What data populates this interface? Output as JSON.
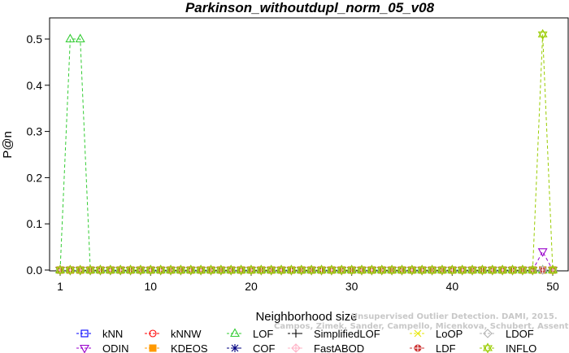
{
  "chart_data": {
    "type": "line",
    "title": "Parkinson_withoutdupl_norm_05_v08",
    "xlabel": "Neighborhood size",
    "ylabel": "P@n",
    "xlim": [
      1,
      50
    ],
    "ylim": [
      0,
      0.5
    ],
    "xticks": [
      1,
      10,
      20,
      30,
      40,
      50
    ],
    "yticks": [
      0.0,
      0.1,
      0.2,
      0.3,
      0.4,
      0.5
    ],
    "xtick_labels": [
      "1",
      "10",
      "20",
      "30",
      "40",
      "50"
    ],
    "ytick_labels": [
      "0.0",
      "0.1",
      "0.2",
      "0.3",
      "0.4",
      "0.5"
    ],
    "x": [
      1,
      2,
      3,
      4,
      5,
      6,
      7,
      8,
      9,
      10,
      11,
      12,
      13,
      14,
      15,
      16,
      17,
      18,
      19,
      20,
      21,
      22,
      23,
      24,
      25,
      26,
      27,
      28,
      29,
      30,
      31,
      32,
      33,
      34,
      35,
      36,
      37,
      38,
      39,
      40,
      41,
      42,
      43,
      44,
      45,
      46,
      47,
      48,
      49,
      50
    ],
    "grid": false,
    "legend_position": "bottom",
    "series": [
      {
        "name": "kNN",
        "color": "#0000ff",
        "marker": "square",
        "values": [
          0,
          0,
          0,
          0,
          0,
          0,
          0,
          0,
          0,
          0,
          0,
          0,
          0,
          0,
          0,
          0,
          0,
          0,
          0,
          0,
          0,
          0,
          0,
          0,
          0,
          0,
          0,
          0,
          0,
          0,
          0,
          0,
          0,
          0,
          0,
          0,
          0,
          0,
          0,
          0,
          0,
          0,
          0,
          0,
          0,
          0,
          0,
          0,
          0,
          0
        ]
      },
      {
        "name": "ODIN",
        "color": "#9900cc",
        "marker": "triangle-down",
        "values": [
          0,
          0,
          0,
          0,
          0,
          0,
          0,
          0,
          0,
          0,
          0,
          0,
          0,
          0,
          0,
          0,
          0,
          0,
          0,
          0,
          0,
          0,
          0,
          0,
          0,
          0,
          0,
          0,
          0,
          0,
          0,
          0,
          0,
          0,
          0,
          0,
          0,
          0,
          0,
          0,
          0,
          0,
          0,
          0,
          0,
          0,
          0,
          0,
          0.04,
          0
        ]
      },
      {
        "name": "kNNW",
        "color": "#ff0000",
        "marker": "circle",
        "values": [
          0,
          0,
          0,
          0,
          0,
          0,
          0,
          0,
          0,
          0,
          0,
          0,
          0,
          0,
          0,
          0,
          0,
          0,
          0,
          0,
          0,
          0,
          0,
          0,
          0,
          0,
          0,
          0,
          0,
          0,
          0,
          0,
          0,
          0,
          0,
          0,
          0,
          0,
          0,
          0,
          0,
          0,
          0,
          0,
          0,
          0,
          0,
          0,
          0,
          0
        ]
      },
      {
        "name": "KDEOS",
        "color": "#ff9900",
        "marker": "square-filled",
        "values": [
          0,
          0,
          0,
          0,
          0,
          0,
          0,
          0,
          0,
          0,
          0,
          0,
          0,
          0,
          0,
          0,
          0,
          0,
          0,
          0,
          0,
          0,
          0,
          0,
          0,
          0,
          0,
          0,
          0,
          0,
          0,
          0,
          0,
          0,
          0,
          0,
          0,
          0,
          0,
          0,
          0,
          0,
          0,
          0,
          0,
          0,
          0,
          0,
          0,
          0
        ]
      },
      {
        "name": "LOF",
        "color": "#33cc33",
        "marker": "triangle",
        "values": [
          0,
          0.5,
          0.5,
          0,
          0,
          0,
          0,
          0,
          0,
          0,
          0,
          0,
          0,
          0,
          0,
          0,
          0,
          0,
          0,
          0,
          0,
          0,
          0,
          0,
          0,
          0,
          0,
          0,
          0,
          0,
          0,
          0,
          0,
          0,
          0,
          0,
          0,
          0,
          0,
          0,
          0,
          0,
          0,
          0,
          0,
          0,
          0,
          0,
          0,
          0
        ]
      },
      {
        "name": "COF",
        "color": "#000080",
        "marker": "star",
        "values": [
          0,
          0,
          0,
          0,
          0,
          0,
          0,
          0,
          0,
          0,
          0,
          0,
          0,
          0,
          0,
          0,
          0,
          0,
          0,
          0,
          0,
          0,
          0,
          0,
          0,
          0,
          0,
          0,
          0,
          0,
          0,
          0,
          0,
          0,
          0,
          0,
          0,
          0,
          0,
          0,
          0,
          0,
          0,
          0,
          0,
          0,
          0,
          0,
          0,
          0
        ]
      },
      {
        "name": "SimplifiedLOF",
        "color": "#000000",
        "marker": "plus",
        "values": [
          0,
          0,
          0,
          0,
          0,
          0,
          0,
          0,
          0,
          0,
          0,
          0,
          0,
          0,
          0,
          0,
          0,
          0,
          0,
          0,
          0,
          0,
          0,
          0,
          0,
          0,
          0,
          0,
          0,
          0,
          0,
          0,
          0,
          0,
          0,
          0,
          0,
          0,
          0,
          0,
          0,
          0,
          0,
          0,
          0,
          0,
          0,
          0,
          0,
          0
        ]
      },
      {
        "name": "FastABOD",
        "color": "#ffb3c6",
        "marker": "diamond-plus",
        "values": [
          0,
          0,
          0,
          0,
          0,
          0,
          0,
          0,
          0,
          0,
          0,
          0,
          0,
          0,
          0,
          0,
          0,
          0,
          0,
          0,
          0,
          0,
          0,
          0,
          0,
          0,
          0,
          0,
          0,
          0,
          0,
          0,
          0,
          0,
          0,
          0,
          0,
          0,
          0,
          0,
          0,
          0,
          0,
          0,
          0,
          0,
          0,
          0,
          0,
          0
        ]
      },
      {
        "name": "LoOP",
        "color": "#e6e600",
        "marker": "cross",
        "values": [
          0,
          0,
          0,
          0,
          0,
          0,
          0,
          0,
          0,
          0,
          0,
          0,
          0,
          0,
          0,
          0,
          0,
          0,
          0,
          0,
          0,
          0,
          0,
          0,
          0,
          0,
          0,
          0,
          0,
          0,
          0,
          0,
          0,
          0,
          0,
          0,
          0,
          0,
          0,
          0,
          0,
          0,
          0,
          0,
          0,
          0,
          0,
          0,
          0,
          0
        ]
      },
      {
        "name": "LDF",
        "color": "#cc3333",
        "marker": "circle-plus",
        "values": [
          0,
          0,
          0,
          0,
          0,
          0,
          0,
          0,
          0,
          0,
          0,
          0,
          0,
          0,
          0,
          0,
          0,
          0,
          0,
          0,
          0,
          0,
          0,
          0,
          0,
          0,
          0,
          0,
          0,
          0,
          0,
          0,
          0,
          0,
          0,
          0,
          0,
          0,
          0,
          0,
          0,
          0,
          0,
          0,
          0,
          0,
          0,
          0,
          0,
          0
        ]
      },
      {
        "name": "LDOF",
        "color": "#b3b3b3",
        "marker": "diamond",
        "values": [
          0,
          0,
          0,
          0,
          0,
          0,
          0,
          0,
          0,
          0,
          0,
          0,
          0,
          0,
          0,
          0,
          0,
          0,
          0,
          0,
          0,
          0,
          0,
          0,
          0,
          0,
          0,
          0,
          0,
          0,
          0,
          0,
          0,
          0,
          0,
          0,
          0,
          0,
          0,
          0,
          0,
          0,
          0,
          0,
          0,
          0,
          0,
          0,
          0,
          0
        ]
      },
      {
        "name": "INFLO",
        "color": "#99cc00",
        "marker": "star-of-david",
        "values": [
          0,
          0,
          0,
          0,
          0,
          0,
          0,
          0,
          0,
          0,
          0,
          0,
          0,
          0,
          0,
          0,
          0,
          0,
          0,
          0,
          0,
          0,
          0,
          0,
          0,
          0,
          0,
          0,
          0,
          0,
          0,
          0,
          0,
          0,
          0,
          0,
          0,
          0,
          0,
          0,
          0,
          0,
          0,
          0,
          0,
          0,
          0,
          0,
          0.51,
          0
        ]
      }
    ]
  },
  "watermark": {
    "line1": "Unsupervised Outlier Detection. DAMI, 2015.",
    "line2": "Campos, Zimek, Sander, Campello, Micenkova, Schubert, Assent, Houle"
  }
}
